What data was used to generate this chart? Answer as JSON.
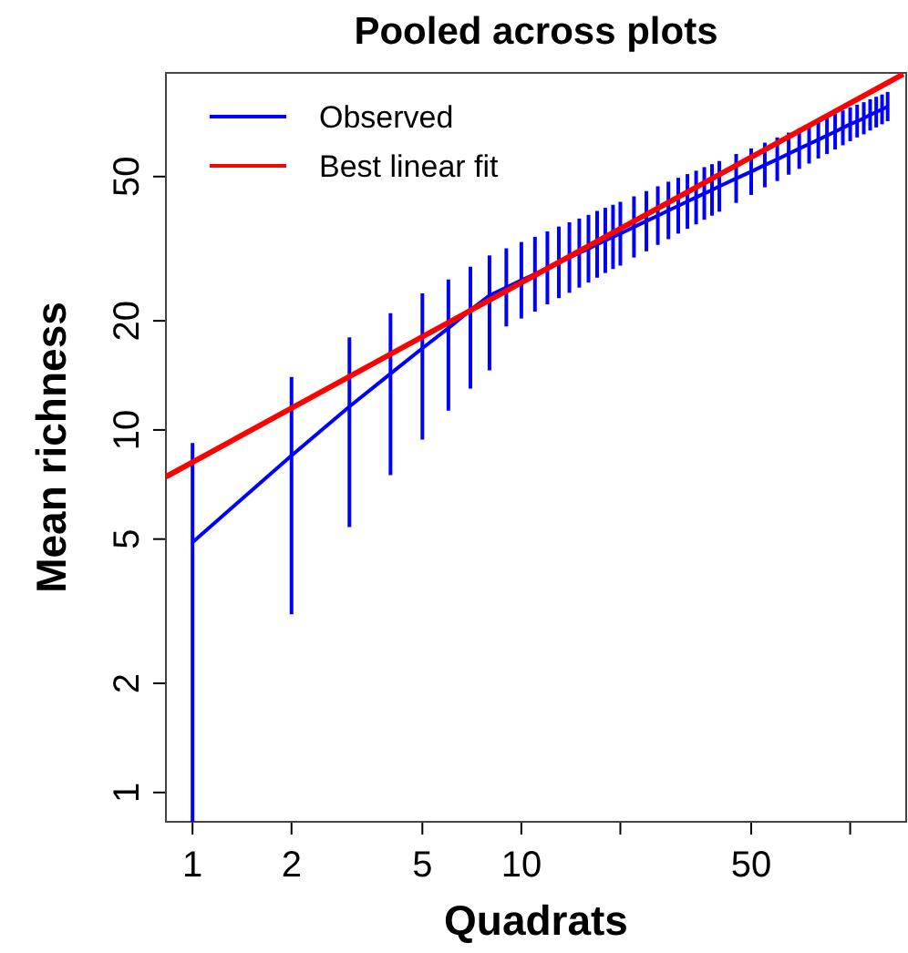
{
  "chart_data": {
    "type": "line",
    "title": "Pooled across plots",
    "xlabel": "Quadrats",
    "ylabel": "Mean richness",
    "log": "xy",
    "grid": false,
    "legend": "top left",
    "marker": "none",
    "line_style": "solid",
    "xlim": [
      0.83,
      148
    ],
    "ylim": [
      0.83,
      96.6
    ],
    "xticks": [
      1,
      2,
      5,
      10,
      {
        "value": 20,
        "label": null
      },
      50,
      {
        "value": 100,
        "label": null
      }
    ],
    "yticks": [
      1,
      2,
      5,
      10,
      20,
      50
    ],
    "series": [
      {
        "name": "Observed",
        "color": "#0000ff",
        "x": [
          1,
          2,
          3,
          4,
          5,
          6,
          7,
          8,
          9,
          10,
          11,
          12,
          13,
          14,
          15,
          16,
          17,
          18,
          19,
          20,
          22,
          24,
          26,
          28,
          30,
          32,
          34,
          36,
          38,
          40,
          45,
          50,
          55,
          60,
          65,
          70,
          75,
          80,
          85,
          90,
          95,
          100,
          105,
          110,
          115,
          120,
          125,
          130
        ],
        "values": [
          4.9,
          8.5,
          11.6,
          14.3,
          16.8,
          19.1,
          21.4,
          23.5,
          24.7,
          25.9,
          26.9,
          28.0,
          29.0,
          29.9,
          30.8,
          31.6,
          32.5,
          33.3,
          34.1,
          34.8,
          36.3,
          37.7,
          39.0,
          40.3,
          41.5,
          42.7,
          43.8,
          44.9,
          45.9,
          47.0,
          49.4,
          51.6,
          53.8,
          55.8,
          57.8,
          59.7,
          61.5,
          63.2,
          64.9,
          66.5,
          68.1,
          69.7,
          71.1,
          72.4,
          74.0,
          75.3,
          76.6,
          78.0
        ],
        "errors": [
          [
            0.83,
            9.2
          ],
          [
            3.1,
            14.0
          ],
          [
            5.4,
            18.0
          ],
          [
            7.5,
            21
          ],
          [
            9.4,
            23.8
          ],
          [
            11.3,
            26
          ],
          [
            13.0,
            28.2
          ],
          [
            14.6,
            30.3
          ],
          [
            19.3,
            31.7
          ],
          [
            20.3,
            33.0
          ],
          [
            21.2,
            34.1
          ],
          [
            22.2,
            35.3
          ],
          [
            23.1,
            36.4
          ],
          [
            23.9,
            37.4
          ],
          [
            24.7,
            38.3
          ],
          [
            25.5,
            39.2
          ],
          [
            26.3,
            40.2
          ],
          [
            27.1,
            41.0
          ],
          [
            27.8,
            41.8
          ],
          [
            28.4,
            42.6
          ],
          [
            29.9,
            44.1
          ],
          [
            31.1,
            45.6
          ],
          [
            32.4,
            47.0
          ],
          [
            33.6,
            48.4
          ],
          [
            34.8,
            49.6
          ],
          [
            35.9,
            50.8
          ],
          [
            36.9,
            51.9
          ],
          [
            38.0,
            53.1
          ],
          [
            39.0,
            54.1
          ],
          [
            40.0,
            55.2
          ],
          [
            42.3,
            57.7
          ],
          [
            44.5,
            59.8
          ],
          [
            46.7,
            62.0
          ],
          [
            48.6,
            64.1
          ],
          [
            50.6,
            66.1
          ],
          [
            52.5,
            67.9
          ],
          [
            54.3,
            69.6
          ],
          [
            56.1,
            71.2
          ],
          [
            57.7,
            73.0
          ],
          [
            59.4,
            74.4
          ],
          [
            61.0,
            76.1
          ],
          [
            62.6,
            77.6
          ],
          [
            64.1,
            78.9
          ],
          [
            65.4,
            80.2
          ],
          [
            67.0,
            81.7
          ],
          [
            68.3,
            83.0
          ],
          [
            69.7,
            84.2
          ],
          [
            71.1,
            85.6
          ]
        ]
      },
      {
        "name": "Best linear fit",
        "color": "#ff0000",
        "x": [
          0.83,
          145
        ],
        "values": [
          7.43,
          95.8
        ]
      }
    ]
  }
}
